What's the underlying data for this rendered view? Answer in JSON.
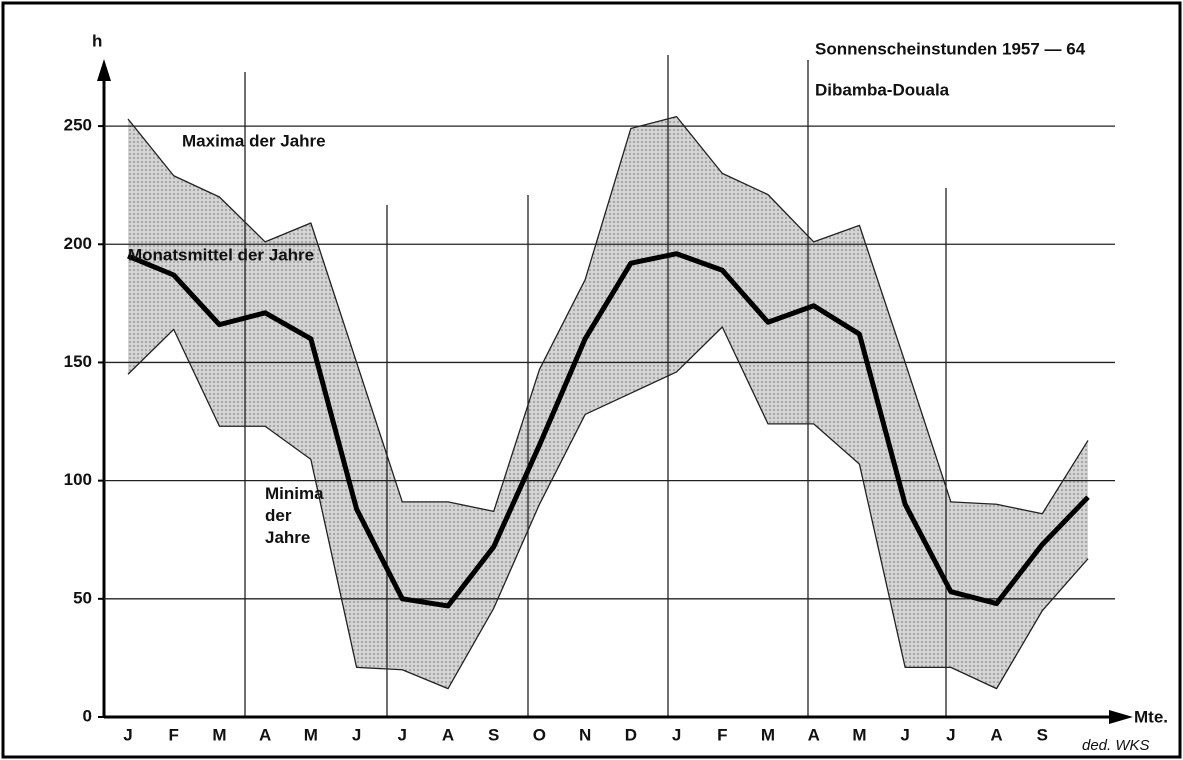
{
  "chart_data": {
    "type": "band-line",
    "title": "Sonnenscheinstunden 1957 — 64",
    "subtitle": "Dibamba-Douala",
    "y_label": "h",
    "x_label": "Mte.",
    "credit": "ded. WKS",
    "categories": [
      "J",
      "F",
      "M",
      "A",
      "M",
      "J",
      "J",
      "A",
      "S",
      "O",
      "N",
      "D",
      "J",
      "F",
      "M",
      "A",
      "M",
      "J",
      "J",
      "A",
      "S",
      null
    ],
    "series": [
      {
        "name": "Maxima der Jahre",
        "color": "#222",
        "values": [
          253,
          229,
          220,
          201,
          209,
          150,
          91,
          91,
          87,
          147,
          185,
          249,
          254,
          230,
          221,
          201,
          208,
          150,
          91,
          90,
          86,
          117
        ]
      },
      {
        "name": "Monatsmittel der Jahre",
        "color": "#000",
        "values": [
          195,
          187,
          166,
          171,
          160,
          88,
          50,
          47,
          72,
          115,
          160,
          192,
          196,
          189,
          167,
          174,
          162,
          90,
          53,
          48,
          73,
          93
        ]
      },
      {
        "name": "Minima der Jahre",
        "color": "#222",
        "values": [
          145,
          164,
          123,
          123,
          109,
          21,
          20,
          12,
          46,
          90,
          128,
          137,
          146,
          165,
          124,
          124,
          107,
          21,
          21,
          12,
          45,
          67
        ]
      }
    ],
    "band_color": "#c8c8c8",
    "ylim": [
      0,
      275
    ],
    "yticks": [
      0,
      50,
      100,
      150,
      200,
      250
    ],
    "grid": true
  }
}
